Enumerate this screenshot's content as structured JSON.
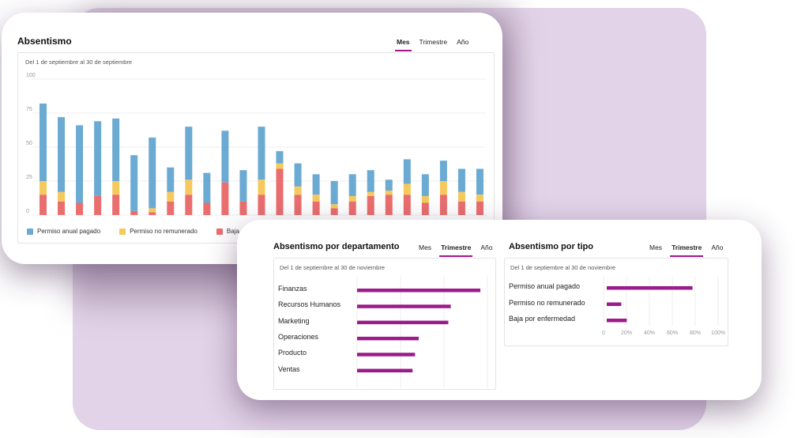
{
  "colors": {
    "accent": "#9c1b8c",
    "annual": "#6aaad3",
    "unpaid": "#f5c95c",
    "sick": "#ea6e6e"
  },
  "main_card": {
    "title": "Absentismo",
    "tabs": [
      "Mes",
      "Trimestre",
      "Año"
    ],
    "active_tab": "Mes",
    "date_range": "Del 1 de septiembre al 30 de septiembre",
    "legend": [
      "Permiso anual pagado",
      "Permiso no remunerado",
      "Baja"
    ]
  },
  "dept_card": {
    "title": "Absentismo por departamento",
    "tabs": [
      "Mes",
      "Trimestre",
      "Año"
    ],
    "active_tab": "Trimestre",
    "date_range": "Del 1 de septiembre al 30 de noviembre"
  },
  "type_card": {
    "title": "Absentismo por tipo",
    "tabs": [
      "Mes",
      "Trimestre",
      "Año"
    ],
    "active_tab": "Trimestre",
    "date_range": "Del 1 de septiembre al 30 de noviembre"
  },
  "chart_data": [
    {
      "type": "bar",
      "stacked": true,
      "yticks": [
        "100",
        "75",
        "50",
        "25",
        "0"
      ],
      "ylim": [
        0,
        100
      ],
      "grid": true,
      "legend_position": "bottom",
      "series": [
        {
          "name": "Permiso anual pagado",
          "color": "#6aaad3",
          "values": [
            57,
            55,
            57,
            55,
            46,
            41,
            52,
            18,
            39,
            22,
            38,
            23,
            39,
            9,
            17,
            15,
            17,
            16,
            16,
            8,
            18,
            16,
            15,
            17,
            19
          ]
        },
        {
          "name": "Permiso no remunerado",
          "color": "#f5c95c",
          "values": [
            10,
            7,
            0,
            0,
            10,
            0,
            3,
            7,
            11,
            0,
            0,
            0,
            11,
            4,
            6,
            5,
            3,
            4,
            3,
            3,
            8,
            5,
            10,
            7,
            5
          ]
        },
        {
          "name": "Baja",
          "color": "#ea6e6e",
          "values": [
            15,
            10,
            9,
            14,
            15,
            3,
            2,
            10,
            15,
            9,
            24,
            10,
            15,
            34,
            15,
            10,
            5,
            10,
            14,
            15,
            15,
            9,
            15,
            10,
            10
          ]
        }
      ]
    },
    {
      "type": "bar",
      "orientation": "horizontal",
      "categories": [
        "Finanzas",
        "Recursos Humanos",
        "Marketing",
        "Operaciones",
        "Producto",
        "Ventas"
      ],
      "values": [
        100,
        76,
        74,
        50,
        47,
        45
      ],
      "color": "#9c1b8c"
    },
    {
      "type": "bar",
      "orientation": "horizontal",
      "categories": [
        "Permiso anual pagado",
        "Permiso no remunerado",
        "Baja por enfermedad"
      ],
      "values": [
        77,
        13,
        18
      ],
      "xticks": [
        "0",
        "20%",
        "40%",
        "60%",
        "80%",
        "100%"
      ],
      "xlim": [
        0,
        100
      ],
      "color": "#9c1b8c"
    }
  ]
}
